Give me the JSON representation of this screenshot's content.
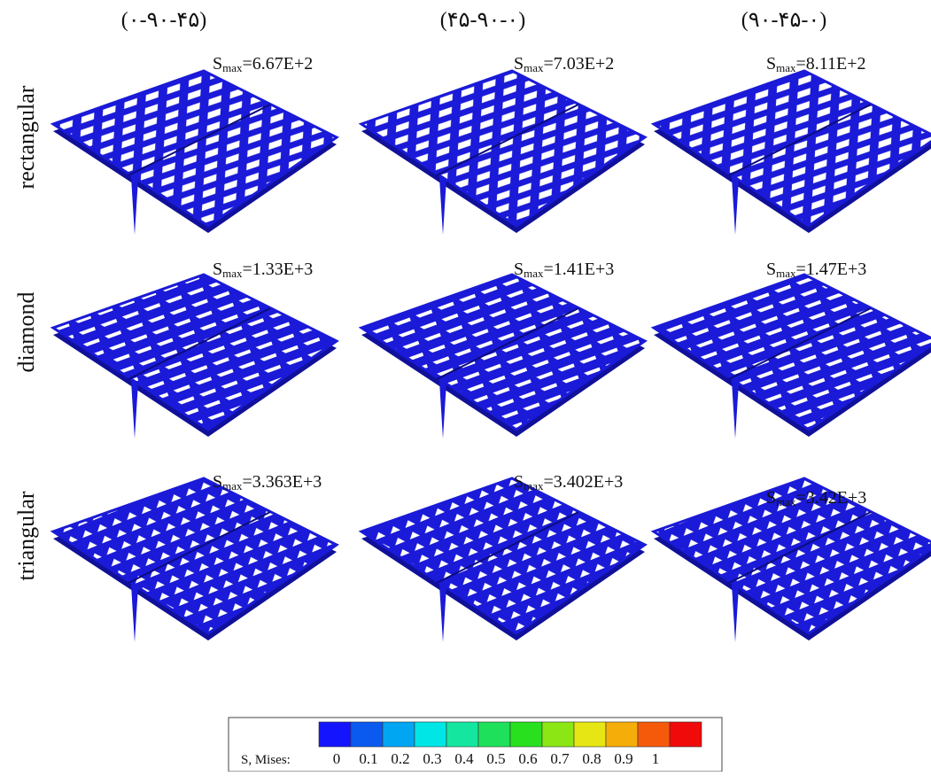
{
  "columns": [
    "(۰-۹۰-۴۵)",
    "(۴۵-۹۰-۰)",
    "(۹۰-۴۵-۰)"
  ],
  "smax_symbol": "S",
  "smax_sub": "max",
  "rows": [
    {
      "label": "rectangular",
      "cells": [
        "=6.67E+2",
        "=7.03E+2",
        "=8.11E+2"
      ]
    },
    {
      "label": "diamond",
      "cells": [
        "=1.33E+3",
        "=1.41E+3",
        "=1.47E+3"
      ]
    },
    {
      "label": "triangular",
      "cells": [
        "=3.363E+3",
        "=3.402E+3",
        "=3.42E+3"
      ]
    }
  ],
  "legend": {
    "title": "S, Mises:",
    "ticks": [
      0,
      0.1,
      0.2,
      0.3,
      0.4,
      0.5,
      0.6,
      0.7,
      0.8,
      0.9,
      1
    ],
    "colors": [
      "#1414ff",
      "#0a5af0",
      "#00a6f2",
      "#00e6e6",
      "#14e6a0",
      "#1ee05a",
      "#28e01e",
      "#8ce614",
      "#e6e614",
      "#f5ad0a",
      "#f55a0a",
      "#f00a0a"
    ]
  }
}
